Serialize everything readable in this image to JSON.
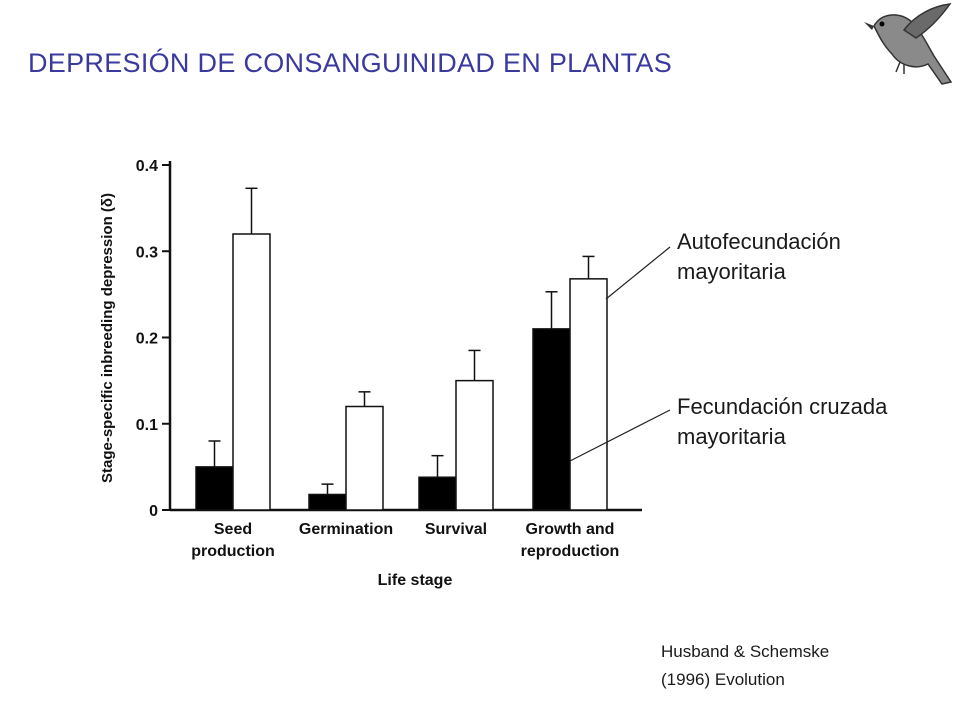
{
  "slide": {
    "title": "DEPRESIÓN  DE CONSANGUINIDAD EN PLANTAS",
    "annotations": [
      {
        "line1": "Autofecundación",
        "line2": "mayoritaria"
      },
      {
        "line1": "Fecundación cruzada",
        "line2": "mayoritaria"
      }
    ],
    "citation": {
      "line1": "Husband & Schemske",
      "line2": "(1996) Evolution"
    },
    "logo_icon": "bird-icon"
  },
  "chart_data": {
    "type": "bar",
    "title": "",
    "xlabel": "Life stage",
    "ylabel": "Stage-specific inbreeding depression (δ)",
    "ylim": [
      0,
      0.4
    ],
    "yticks": [
      "0",
      "0.1",
      "0.2",
      "0.3",
      "0.4"
    ],
    "categories": [
      {
        "line1": "Seed",
        "line2": "production"
      },
      {
        "line1": "Germination",
        "line2": ""
      },
      {
        "line1": "Survival",
        "line2": ""
      },
      {
        "line1": "Growth and",
        "line2": "reproduction"
      }
    ],
    "series": [
      {
        "color": "#000000",
        "values": [
          0.05,
          0.018,
          0.038,
          0.21
        ],
        "errors": [
          0.03,
          0.012,
          0.025,
          0.043
        ]
      },
      {
        "color": "#ffffff",
        "values": [
          0.32,
          0.12,
          0.15,
          0.268
        ],
        "errors": [
          0.053,
          0.017,
          0.035,
          0.026
        ]
      }
    ],
    "grid": false,
    "legend": "none"
  }
}
